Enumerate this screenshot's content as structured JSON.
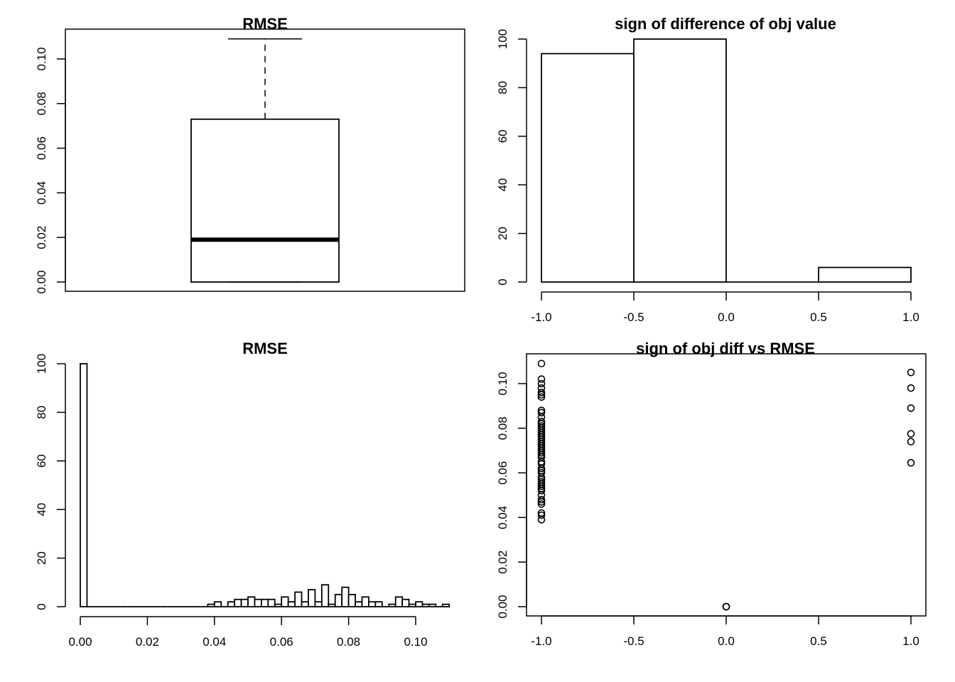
{
  "chart_data": [
    {
      "type": "box",
      "title": "RMSE",
      "ylim": [
        0,
        0.11
      ],
      "yticks": [
        "0.00",
        "0.02",
        "0.04",
        "0.06",
        "0.08",
        "0.10"
      ],
      "stats": {
        "min": 0.0,
        "q1": 0.0,
        "median": 0.019,
        "q3": 0.073,
        "max": 0.109
      }
    },
    {
      "type": "bar",
      "title": "sign of difference of obj value",
      "xticks": [
        "-1.0",
        "-0.5",
        "0.0",
        "0.5",
        "1.0"
      ],
      "yticks": [
        "0",
        "20",
        "40",
        "60",
        "80",
        "100"
      ],
      "ylim": [
        0,
        100
      ],
      "bins": [
        {
          "x0": -1.0,
          "x1": -0.5,
          "count": 94
        },
        {
          "x0": -0.5,
          "x1": 0.0,
          "count": 100
        },
        {
          "x0": 0.0,
          "x1": 0.5,
          "count": 0
        },
        {
          "x0": 0.5,
          "x1": 1.0,
          "count": 6
        }
      ]
    },
    {
      "type": "bar",
      "title": "RMSE",
      "xticks": [
        "0.00",
        "0.02",
        "0.04",
        "0.06",
        "0.08",
        "0.10"
      ],
      "yticks": [
        "0",
        "20",
        "40",
        "60",
        "80",
        "100"
      ],
      "ylim": [
        0,
        100
      ],
      "bin_start": 0.0,
      "bin_width": 0.002,
      "counts": [
        100,
        0,
        0,
        0,
        0,
        0,
        0,
        0,
        0,
        0,
        0,
        0,
        0,
        0,
        0,
        0,
        0,
        0,
        0,
        1,
        2,
        0,
        2,
        3,
        3,
        4,
        3,
        3,
        3,
        1,
        4,
        2,
        6,
        2,
        7,
        2,
        9,
        1,
        5,
        8,
        5,
        2,
        4,
        2,
        2,
        0,
        1,
        4,
        3,
        1,
        2,
        1,
        1,
        0,
        1
      ]
    },
    {
      "type": "scatter",
      "title": "sign of obj diff vs RMSE",
      "xticks": [
        "-1.0",
        "-0.5",
        "0.0",
        "0.5",
        "1.0"
      ],
      "yticks": [
        "0.00",
        "0.02",
        "0.04",
        "0.06",
        "0.08",
        "0.10"
      ],
      "xlim": [
        -1.0,
        1.0
      ],
      "ylim": [
        0,
        0.11
      ],
      "points": [
        [
          -1,
          0.109
        ],
        [
          -1,
          0.102
        ],
        [
          -1,
          0.1
        ],
        [
          -1,
          0.098
        ],
        [
          -1,
          0.096
        ],
        [
          -1,
          0.095
        ],
        [
          -1,
          0.094
        ],
        [
          -1,
          0.088
        ],
        [
          -1,
          0.087
        ],
        [
          -1,
          0.085
        ],
        [
          -1,
          0.083
        ],
        [
          -1,
          0.082
        ],
        [
          -1,
          0.081
        ],
        [
          -1,
          0.08
        ],
        [
          -1,
          0.079
        ],
        [
          -1,
          0.078
        ],
        [
          -1,
          0.077
        ],
        [
          -1,
          0.076
        ],
        [
          -1,
          0.075
        ],
        [
          -1,
          0.074
        ],
        [
          -1,
          0.073
        ],
        [
          -1,
          0.072
        ],
        [
          -1,
          0.071
        ],
        [
          -1,
          0.07
        ],
        [
          -1,
          0.069
        ],
        [
          -1,
          0.068
        ],
        [
          -1,
          0.067
        ],
        [
          -1,
          0.065
        ],
        [
          -1,
          0.064
        ],
        [
          -1,
          0.062
        ],
        [
          -1,
          0.061
        ],
        [
          -1,
          0.06
        ],
        [
          -1,
          0.058
        ],
        [
          -1,
          0.057
        ],
        [
          -1,
          0.056
        ],
        [
          -1,
          0.055
        ],
        [
          -1,
          0.054
        ],
        [
          -1,
          0.053
        ],
        [
          -1,
          0.052
        ],
        [
          -1,
          0.05
        ],
        [
          -1,
          0.048
        ],
        [
          -1,
          0.047
        ],
        [
          -1,
          0.046
        ],
        [
          -1,
          0.042
        ],
        [
          -1,
          0.041
        ],
        [
          -1,
          0.039
        ],
        [
          0,
          0.0
        ],
        [
          0,
          0.0
        ],
        [
          0,
          0.0
        ],
        [
          1,
          0.105
        ],
        [
          1,
          0.098
        ],
        [
          1,
          0.089
        ],
        [
          1,
          0.0775
        ],
        [
          1,
          0.074
        ],
        [
          1,
          0.0645
        ]
      ]
    }
  ]
}
